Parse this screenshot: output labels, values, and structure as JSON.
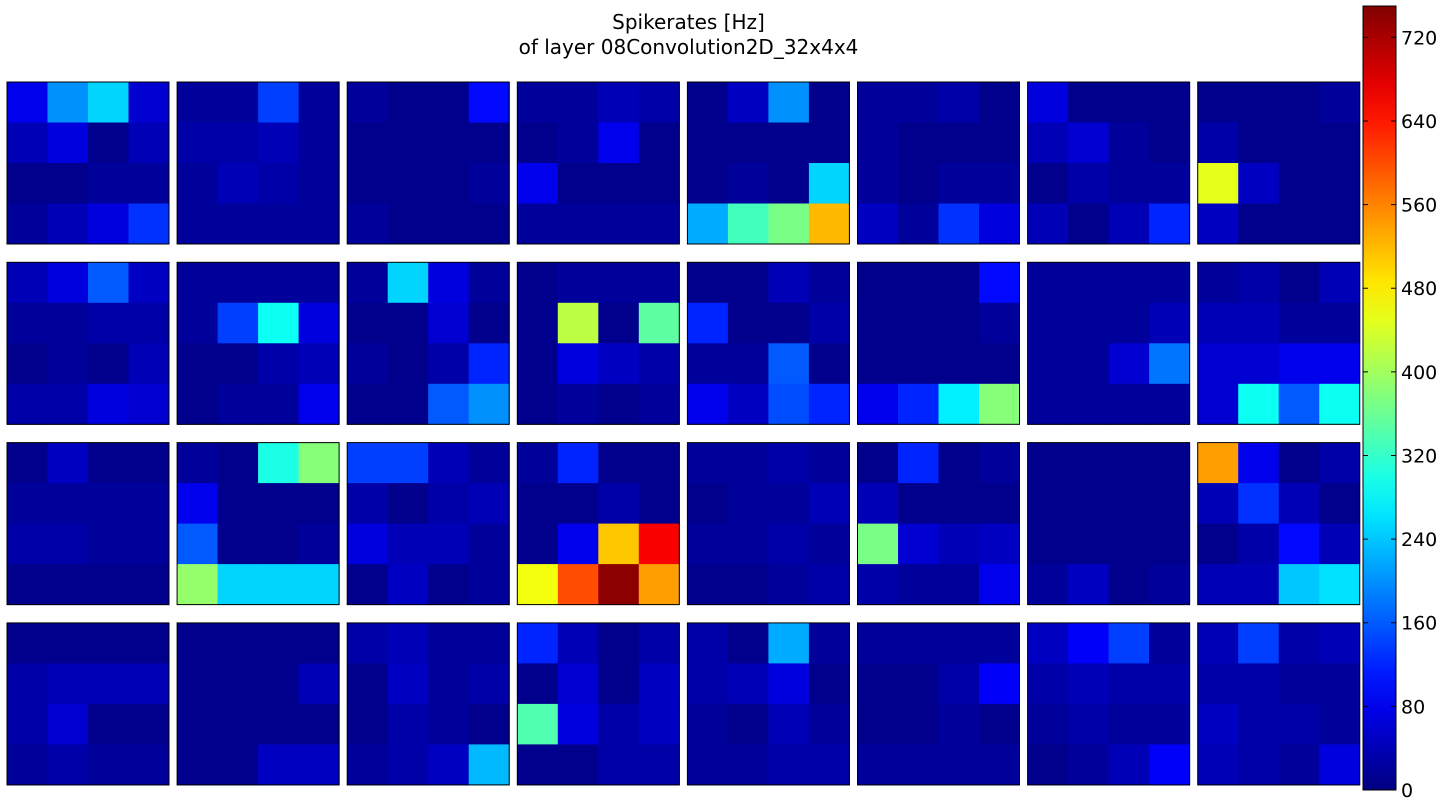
{
  "title_line1": "Spikerates [Hz]",
  "title_line2": "of layer 08Convolution2D_32x4x4",
  "chart_data": {
    "type": "heatmap",
    "title": "Spikerates [Hz] of layer 08Convolution2D_32x4x4",
    "grid_rows": 4,
    "grid_cols": 8,
    "colormap": "jet",
    "vmin": 0,
    "vmax": 750,
    "colorbar": {
      "ticks": [
        0,
        80,
        160,
        240,
        320,
        400,
        480,
        560,
        640,
        720
      ],
      "tick_labels": [
        "0",
        "80",
        "160",
        "240",
        "320",
        "400",
        "480",
        "560",
        "640",
        "720"
      ],
      "placement": "right"
    },
    "maps": [
      [
        [
          80,
          200,
          250,
          60
        ],
        [
          40,
          70,
          10,
          40
        ],
        [
          10,
          10,
          20,
          20
        ],
        [
          20,
          40,
          70,
          130
        ]
      ],
      [
        [
          20,
          20,
          140,
          20
        ],
        [
          30,
          30,
          40,
          20
        ],
        [
          20,
          40,
          30,
          20
        ],
        [
          20,
          20,
          20,
          20
        ]
      ],
      [
        [
          20,
          10,
          10,
          100
        ],
        [
          10,
          10,
          10,
          10
        ],
        [
          10,
          10,
          10,
          20
        ],
        [
          20,
          10,
          10,
          10
        ]
      ],
      [
        [
          20,
          20,
          40,
          30
        ],
        [
          10,
          20,
          80,
          10
        ],
        [
          80,
          10,
          10,
          10
        ],
        [
          20,
          20,
          20,
          20
        ]
      ],
      [
        [
          10,
          50,
          200,
          10
        ],
        [
          10,
          10,
          10,
          10
        ],
        [
          10,
          20,
          10,
          250
        ],
        [
          220,
          330,
          370,
          520
        ]
      ],
      [
        [
          20,
          20,
          30,
          10
        ],
        [
          20,
          10,
          10,
          10
        ],
        [
          20,
          10,
          20,
          20
        ],
        [
          50,
          20,
          130,
          70
        ]
      ],
      [
        [
          70,
          10,
          10,
          10
        ],
        [
          40,
          60,
          20,
          10
        ],
        [
          10,
          30,
          20,
          20
        ],
        [
          40,
          10,
          40,
          120
        ]
      ],
      [
        [
          10,
          10,
          10,
          20
        ],
        [
          30,
          10,
          10,
          10
        ],
        [
          450,
          50,
          10,
          10
        ],
        [
          50,
          10,
          10,
          10
        ]
      ],
      [
        [
          40,
          70,
          160,
          50
        ],
        [
          20,
          20,
          30,
          30
        ],
        [
          10,
          20,
          10,
          40
        ],
        [
          30,
          30,
          70,
          60
        ]
      ],
      [
        [
          20,
          20,
          20,
          20
        ],
        [
          20,
          140,
          290,
          70
        ],
        [
          10,
          10,
          30,
          40
        ],
        [
          10,
          20,
          20,
          80
        ]
      ],
      [
        [
          20,
          250,
          70,
          20
        ],
        [
          10,
          10,
          60,
          10
        ],
        [
          20,
          10,
          30,
          120
        ],
        [
          10,
          10,
          160,
          200
        ]
      ],
      [
        [
          10,
          20,
          20,
          20
        ],
        [
          10,
          420,
          10,
          350
        ],
        [
          10,
          70,
          50,
          30
        ],
        [
          10,
          20,
          10,
          20
        ]
      ],
      [
        [
          10,
          10,
          40,
          20
        ],
        [
          120,
          10,
          10,
          30
        ],
        [
          20,
          20,
          160,
          10
        ],
        [
          80,
          50,
          150,
          120
        ]
      ],
      [
        [
          10,
          10,
          10,
          100
        ],
        [
          10,
          10,
          10,
          20
        ],
        [
          10,
          10,
          10,
          10
        ],
        [
          80,
          120,
          270,
          380
        ]
      ],
      [
        [
          20,
          20,
          20,
          20
        ],
        [
          20,
          20,
          20,
          40
        ],
        [
          20,
          20,
          60,
          180
        ],
        [
          20,
          20,
          20,
          20
        ]
      ],
      [
        [
          20,
          30,
          10,
          40
        ],
        [
          40,
          40,
          20,
          20
        ],
        [
          60,
          60,
          80,
          80
        ],
        [
          60,
          290,
          160,
          290
        ]
      ],
      [
        [
          10,
          50,
          10,
          10
        ],
        [
          20,
          20,
          20,
          20
        ],
        [
          30,
          30,
          20,
          20
        ],
        [
          10,
          10,
          10,
          10
        ]
      ],
      [
        [
          20,
          10,
          300,
          380
        ],
        [
          80,
          10,
          10,
          10
        ],
        [
          160,
          10,
          10,
          20
        ],
        [
          390,
          250,
          250,
          250
        ]
      ],
      [
        [
          140,
          140,
          40,
          20
        ],
        [
          30,
          10,
          30,
          40
        ],
        [
          70,
          40,
          40,
          20
        ],
        [
          10,
          50,
          10,
          20
        ]
      ],
      [
        [
          20,
          120,
          10,
          10
        ],
        [
          10,
          10,
          30,
          10
        ],
        [
          10,
          80,
          510,
          660
        ],
        [
          460,
          600,
          740,
          540
        ]
      ],
      [
        [
          20,
          20,
          30,
          20
        ],
        [
          10,
          20,
          20,
          40
        ],
        [
          20,
          20,
          30,
          20
        ],
        [
          10,
          10,
          20,
          30
        ]
      ],
      [
        [
          10,
          120,
          10,
          20
        ],
        [
          40,
          10,
          10,
          10
        ],
        [
          370,
          60,
          40,
          50
        ],
        [
          30,
          20,
          20,
          80
        ]
      ],
      [
        [
          10,
          10,
          10,
          10
        ],
        [
          10,
          10,
          10,
          10
        ],
        [
          10,
          10,
          10,
          10
        ],
        [
          20,
          50,
          10,
          20
        ]
      ],
      [
        [
          540,
          80,
          10,
          30
        ],
        [
          40,
          130,
          40,
          10
        ],
        [
          10,
          30,
          100,
          40
        ],
        [
          40,
          40,
          240,
          260
        ]
      ],
      [
        [
          10,
          10,
          10,
          10
        ],
        [
          30,
          40,
          40,
          40
        ],
        [
          30,
          60,
          10,
          10
        ],
        [
          20,
          30,
          20,
          20
        ]
      ],
      [
        [
          10,
          10,
          10,
          10
        ],
        [
          10,
          10,
          10,
          40
        ],
        [
          10,
          10,
          10,
          10
        ],
        [
          10,
          10,
          50,
          50
        ]
      ],
      [
        [
          30,
          40,
          20,
          20
        ],
        [
          10,
          50,
          20,
          30
        ],
        [
          10,
          30,
          20,
          10
        ],
        [
          20,
          30,
          50,
          230
        ]
      ],
      [
        [
          120,
          40,
          10,
          30
        ],
        [
          10,
          60,
          10,
          50
        ],
        [
          340,
          70,
          30,
          50
        ],
        [
          10,
          10,
          30,
          30
        ]
      ],
      [
        [
          30,
          10,
          220,
          20
        ],
        [
          30,
          40,
          70,
          10
        ],
        [
          20,
          10,
          40,
          20
        ],
        [
          20,
          20,
          30,
          30
        ]
      ],
      [
        [
          20,
          20,
          20,
          20
        ],
        [
          10,
          10,
          30,
          90
        ],
        [
          10,
          10,
          20,
          10
        ],
        [
          20,
          20,
          20,
          20
        ]
      ],
      [
        [
          50,
          90,
          140,
          20
        ],
        [
          30,
          40,
          30,
          30
        ],
        [
          20,
          30,
          20,
          20
        ],
        [
          10,
          20,
          40,
          90
        ]
      ],
      [
        [
          40,
          140,
          30,
          40
        ],
        [
          30,
          30,
          20,
          20
        ],
        [
          50,
          30,
          30,
          20
        ],
        [
          40,
          30,
          20,
          70
        ]
      ]
    ]
  }
}
